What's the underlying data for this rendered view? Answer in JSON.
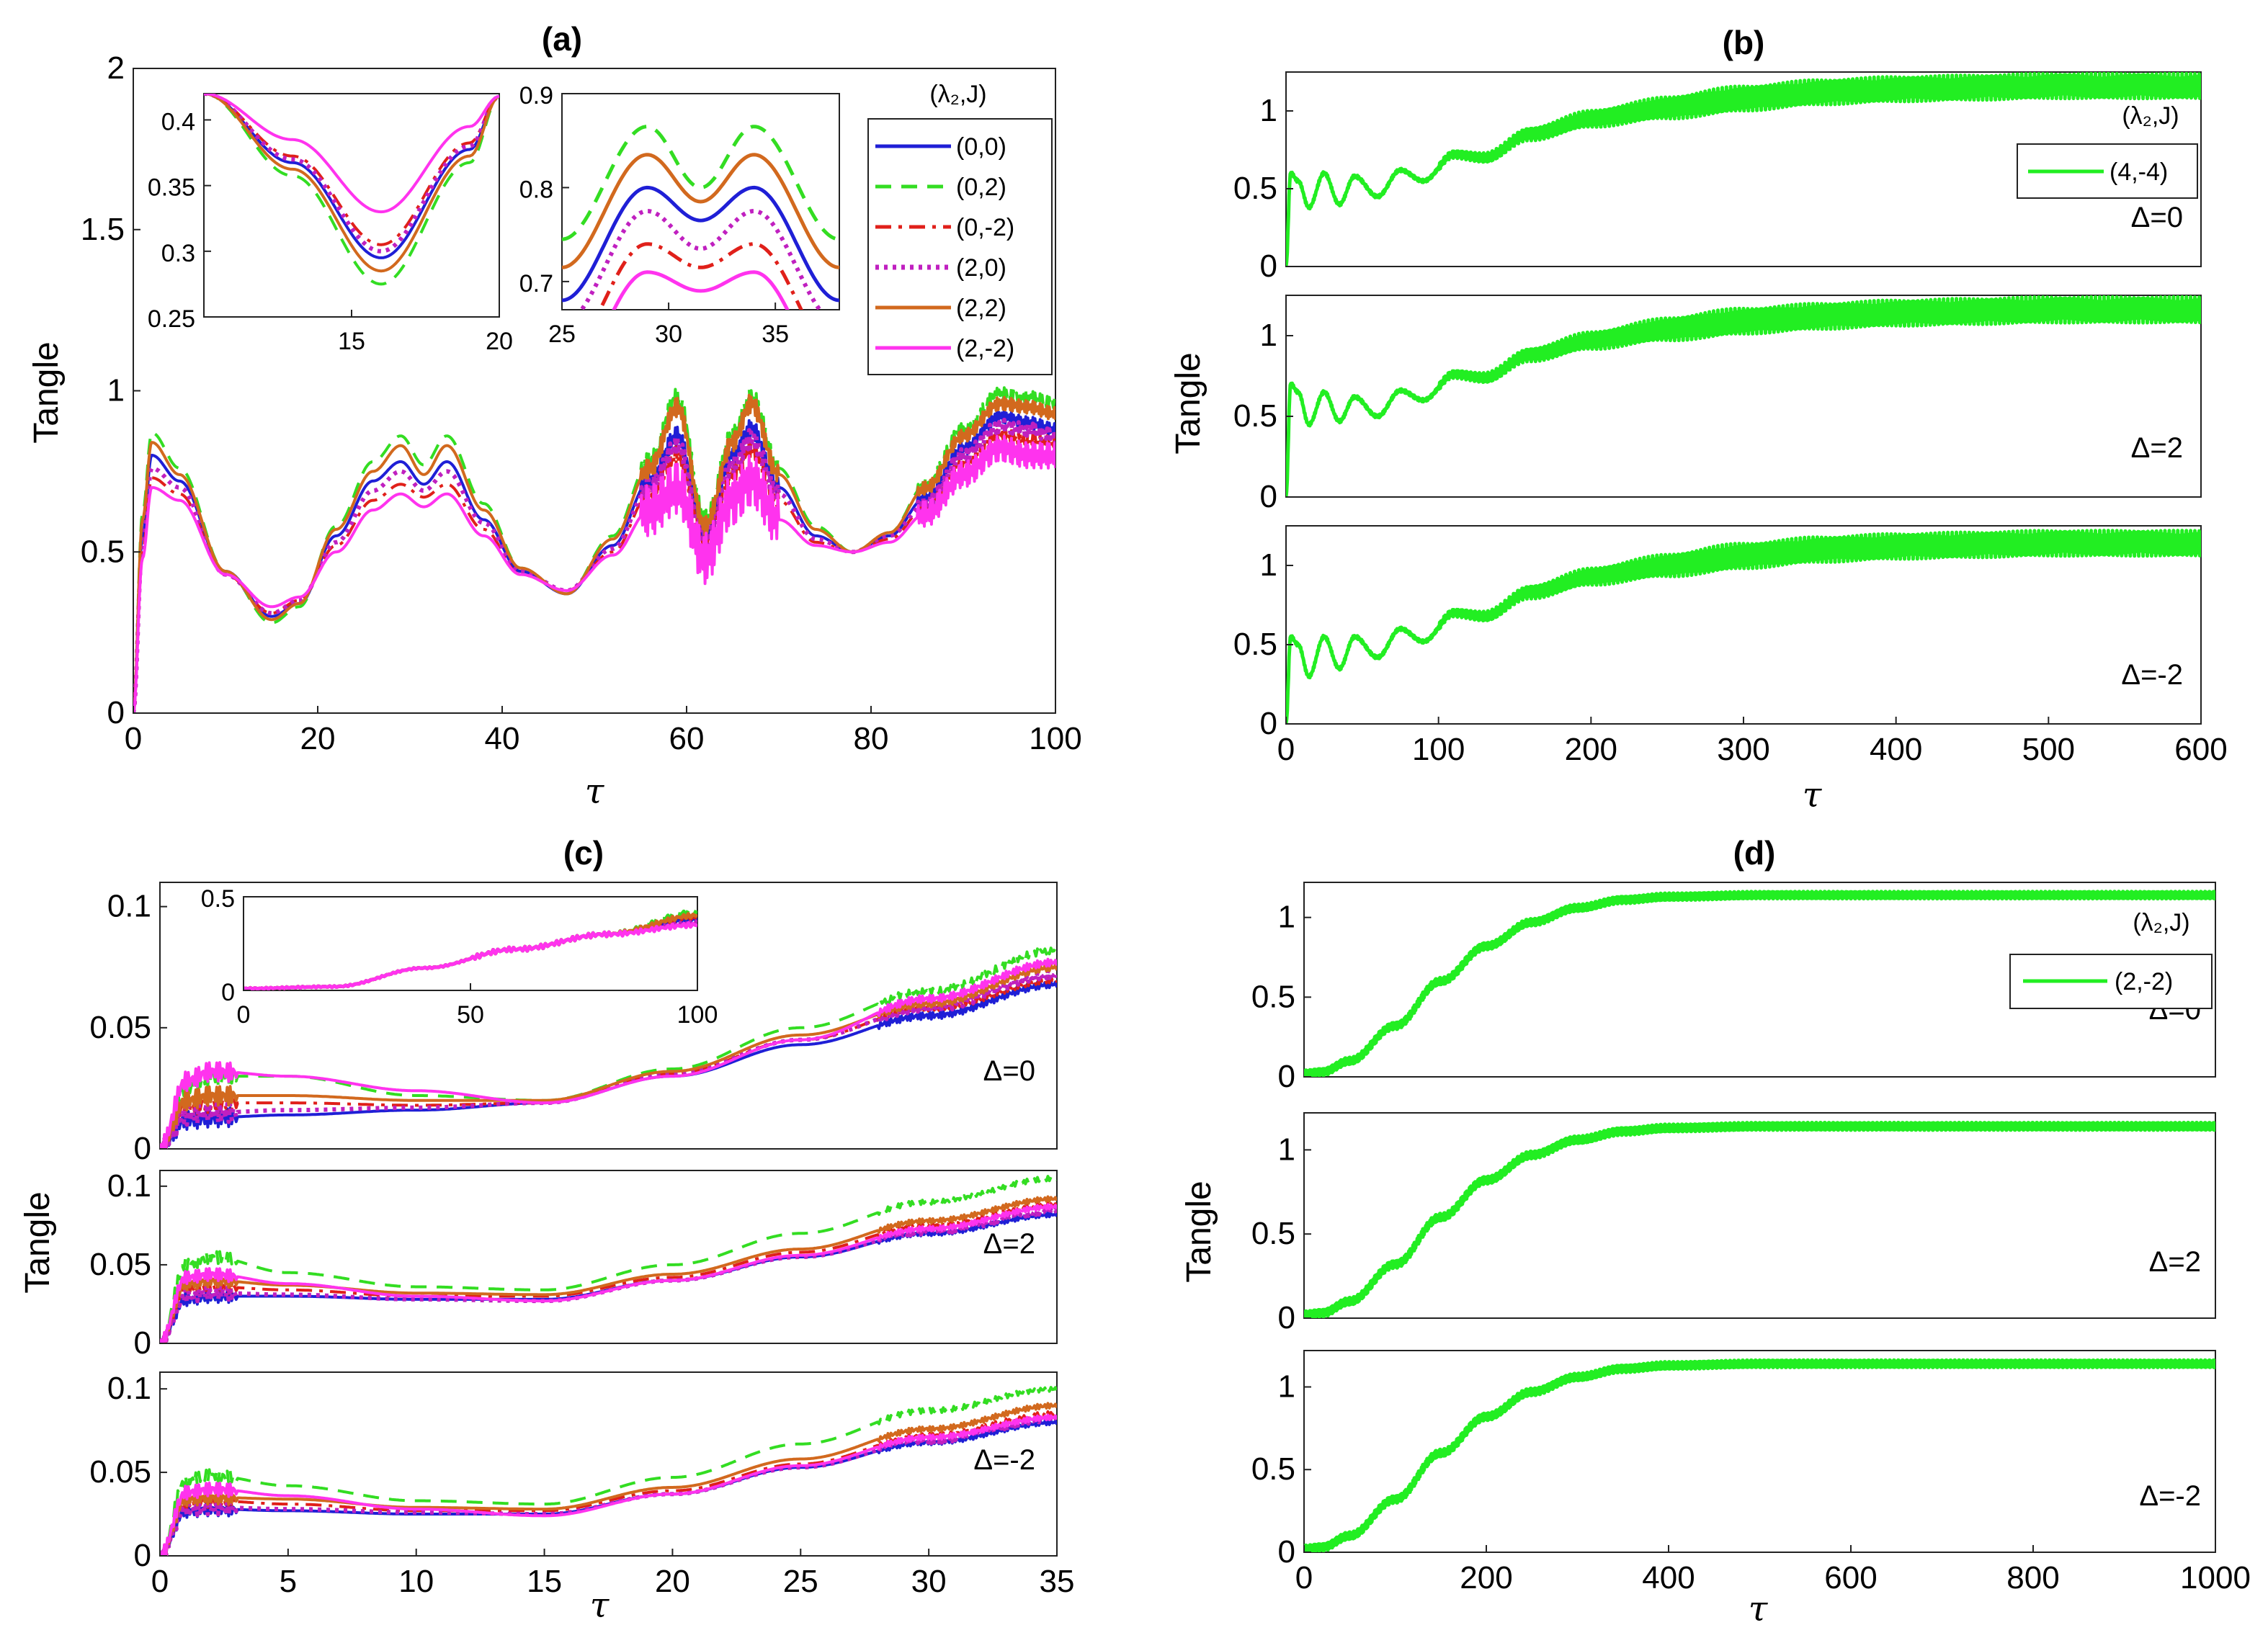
{
  "figure": {
    "colors": {
      "c00": "#1f1fd6",
      "c02": "#33dd22",
      "c0m2": "#e0201a",
      "c20": "#c020c0",
      "c22": "#d2691e",
      "c2m2": "#ff33ee",
      "green": "#22ee22"
    }
  },
  "chart_data": [
    {
      "id": "a",
      "type": "line",
      "title": "(a)",
      "xlabel": "τ",
      "ylabel": "Tangle",
      "xlim": [
        0,
        100
      ],
      "ylim": [
        0,
        2
      ],
      "xticks": [
        "0",
        "20",
        "40",
        "60",
        "80",
        "100"
      ],
      "yticks": [
        "0",
        "0.5",
        "1",
        "1.5",
        "2"
      ],
      "legend_title": "(λ₂,J)",
      "series": [
        {
          "name": "(0,0)",
          "color": "#1f1fd6",
          "style": "solid",
          "x": [
            0,
            1,
            2,
            5,
            10,
            15,
            18,
            22,
            26,
            29,
            31.5,
            34,
            38,
            42,
            47,
            52,
            56,
            59,
            62,
            65,
            67,
            70,
            74,
            78,
            82,
            86,
            90,
            94,
            97,
            100
          ],
          "y": [
            0,
            0.55,
            0.8,
            0.72,
            0.44,
            0.3,
            0.34,
            0.55,
            0.72,
            0.78,
            0.71,
            0.78,
            0.6,
            0.44,
            0.37,
            0.52,
            0.72,
            0.86,
            0.55,
            0.8,
            0.88,
            0.7,
            0.55,
            0.5,
            0.55,
            0.67,
            0.82,
            0.92,
            0.9,
            0.88
          ]
        },
        {
          "name": "(0,2)",
          "color": "#33dd22",
          "style": "dashed",
          "x": [
            0,
            1,
            2,
            5,
            10,
            15,
            18,
            22,
            26,
            29,
            31.5,
            34,
            38,
            42,
            47,
            52,
            56,
            59,
            62,
            65,
            67,
            70,
            74,
            78,
            82,
            86,
            90,
            94,
            97,
            100
          ],
          "y": [
            0,
            0.62,
            0.87,
            0.76,
            0.44,
            0.28,
            0.33,
            0.58,
            0.78,
            0.86,
            0.77,
            0.86,
            0.65,
            0.45,
            0.37,
            0.55,
            0.78,
            0.98,
            0.6,
            0.86,
            0.98,
            0.76,
            0.58,
            0.5,
            0.56,
            0.71,
            0.88,
            0.99,
            0.98,
            0.96
          ]
        },
        {
          "name": "(0,-2)",
          "color": "#e0201a",
          "style": "dashdot",
          "x": [
            0,
            1,
            2,
            5,
            10,
            15,
            18,
            22,
            26,
            29,
            31.5,
            34,
            38,
            42,
            47,
            52,
            56,
            59,
            62,
            65,
            67,
            70,
            74,
            78,
            82,
            86,
            90,
            94,
            97,
            100
          ],
          "y": [
            0,
            0.5,
            0.73,
            0.68,
            0.43,
            0.31,
            0.35,
            0.52,
            0.66,
            0.71,
            0.67,
            0.71,
            0.57,
            0.43,
            0.38,
            0.5,
            0.68,
            0.8,
            0.53,
            0.74,
            0.82,
            0.66,
            0.53,
            0.5,
            0.54,
            0.64,
            0.77,
            0.86,
            0.85,
            0.84
          ]
        },
        {
          "name": "(2,0)",
          "color": "#c020c0",
          "style": "dotted",
          "x": [
            0,
            1,
            2,
            5,
            10,
            15,
            18,
            22,
            26,
            29,
            31.5,
            34,
            38,
            42,
            47,
            52,
            56,
            59,
            62,
            65,
            67,
            70,
            74,
            78,
            82,
            86,
            90,
            94,
            97,
            100
          ],
          "y": [
            0,
            0.52,
            0.76,
            0.7,
            0.43,
            0.31,
            0.35,
            0.53,
            0.69,
            0.75,
            0.69,
            0.75,
            0.59,
            0.44,
            0.38,
            0.51,
            0.7,
            0.83,
            0.54,
            0.77,
            0.85,
            0.68,
            0.54,
            0.5,
            0.55,
            0.65,
            0.8,
            0.89,
            0.88,
            0.86
          ]
        },
        {
          "name": "(2,2)",
          "color": "#d2691e",
          "style": "solid",
          "x": [
            0,
            1,
            2,
            5,
            10,
            15,
            18,
            22,
            26,
            29,
            31.5,
            34,
            38,
            42,
            47,
            52,
            56,
            59,
            62,
            65,
            67,
            70,
            74,
            78,
            82,
            86,
            90,
            94,
            97,
            100
          ],
          "y": [
            0,
            0.6,
            0.84,
            0.74,
            0.44,
            0.29,
            0.34,
            0.57,
            0.75,
            0.83,
            0.74,
            0.83,
            0.63,
            0.45,
            0.37,
            0.54,
            0.76,
            0.95,
            0.58,
            0.84,
            0.96,
            0.74,
            0.57,
            0.5,
            0.56,
            0.7,
            0.86,
            0.96,
            0.95,
            0.93
          ]
        },
        {
          "name": "(2,-2)",
          "color": "#ff33ee",
          "style": "solid",
          "x": [
            0,
            1,
            2,
            5,
            10,
            15,
            18,
            22,
            26,
            29,
            31.5,
            34,
            38,
            42,
            47,
            52,
            56,
            59,
            62,
            65,
            67,
            70,
            74,
            78,
            82,
            86,
            90,
            94,
            97,
            100
          ],
          "y": [
            0,
            0.48,
            0.7,
            0.66,
            0.43,
            0.33,
            0.36,
            0.5,
            0.63,
            0.68,
            0.64,
            0.68,
            0.55,
            0.43,
            0.38,
            0.49,
            0.63,
            0.7,
            0.48,
            0.66,
            0.72,
            0.6,
            0.52,
            0.5,
            0.53,
            0.62,
            0.74,
            0.82,
            0.8,
            0.8
          ]
        }
      ],
      "insets": [
        {
          "xlim": [
            10,
            20
          ],
          "ylim": [
            0.25,
            0.42
          ],
          "xticks": [
            "15",
            "20"
          ],
          "yticks": [
            "0.25",
            "0.3",
            "0.35",
            "0.4"
          ],
          "series_min_y": [
            0.295,
            0.275,
            0.305,
            0.3,
            0.285,
            0.33
          ],
          "min_x": 16
        },
        {
          "xlim": [
            25,
            38
          ],
          "ylim": [
            0.67,
            0.9
          ],
          "xticks": [
            "25",
            "30",
            "35"
          ],
          "yticks": [
            "0.7",
            "0.8",
            "0.9"
          ],
          "series_peak_y": [
            0.8,
            0.865,
            0.74,
            0.775,
            0.835,
            0.71
          ],
          "series_dip_y": [
            0.765,
            0.8,
            0.715,
            0.735,
            0.785,
            0.69
          ]
        }
      ]
    },
    {
      "id": "b",
      "type": "line",
      "title": "(b)",
      "xlabel": "τ",
      "ylabel": "Tangle",
      "xlim": [
        0,
        600
      ],
      "ylim": [
        0,
        1.25
      ],
      "xticks": [
        "0",
        "100",
        "200",
        "300",
        "400",
        "500",
        "600"
      ],
      "yticks": [
        "0",
        "0.5",
        "1"
      ],
      "legend_title": "(λ₂,J)",
      "legend_entry": "(4,-4)",
      "subplots": [
        {
          "label": "Δ=0",
          "x": [
            0,
            3,
            8,
            15,
            25,
            35,
            45,
            60,
            75,
            90,
            110,
            130,
            160,
            200,
            250,
            300,
            350,
            400,
            450,
            500,
            550,
            600
          ],
          "y": [
            0,
            0.6,
            0.55,
            0.38,
            0.6,
            0.4,
            0.58,
            0.45,
            0.62,
            0.55,
            0.72,
            0.7,
            0.85,
            0.95,
            1.02,
            1.08,
            1.12,
            1.14,
            1.15,
            1.16,
            1.16,
            1.16
          ]
        },
        {
          "label": "Δ=2",
          "x": [
            0,
            3,
            8,
            15,
            25,
            35,
            45,
            60,
            75,
            90,
            110,
            130,
            160,
            200,
            250,
            300,
            350,
            400,
            450,
            500,
            550,
            600
          ],
          "y": [
            0,
            0.7,
            0.65,
            0.45,
            0.65,
            0.47,
            0.62,
            0.5,
            0.66,
            0.6,
            0.76,
            0.74,
            0.88,
            0.97,
            1.04,
            1.09,
            1.12,
            1.14,
            1.15,
            1.16,
            1.16,
            1.16
          ]
        },
        {
          "label": "Δ=-2",
          "x": [
            0,
            3,
            8,
            15,
            25,
            35,
            45,
            60,
            75,
            90,
            110,
            130,
            160,
            200,
            250,
            300,
            350,
            400,
            450,
            500,
            550,
            600
          ],
          "y": [
            0,
            0.55,
            0.5,
            0.3,
            0.55,
            0.35,
            0.55,
            0.42,
            0.6,
            0.52,
            0.7,
            0.68,
            0.83,
            0.93,
            1.0,
            1.06,
            1.1,
            1.12,
            1.13,
            1.14,
            1.14,
            1.14
          ]
        }
      ]
    },
    {
      "id": "c",
      "type": "line",
      "title": "(c)",
      "xlabel": "τ",
      "ylabel": "Tangle",
      "xlim": [
        0,
        35
      ],
      "ylim": [
        0,
        0.11
      ],
      "xticks": [
        "0",
        "5",
        "10",
        "15",
        "20",
        "25",
        "30",
        "35"
      ],
      "yticks": [
        "0",
        "0.05",
        "0.1"
      ],
      "inset": {
        "xlim": [
          0,
          100
        ],
        "ylim": [
          0,
          0.5
        ],
        "xticks": [
          "0",
          "50",
          "100"
        ],
        "yticks": [
          "0",
          "0.5"
        ]
      },
      "subplots": [
        {
          "label": "Δ=0",
          "x": [
            0,
            1,
            2,
            5,
            10,
            15,
            20,
            25,
            30,
            35
          ],
          "series": [
            [
              0,
              0.012,
              0.013,
              0.014,
              0.016,
              0.019,
              0.03,
              0.043,
              0.055,
              0.068
            ],
            [
              0,
              0.025,
              0.03,
              0.03,
              0.022,
              0.02,
              0.033,
              0.05,
              0.065,
              0.082
            ],
            [
              0,
              0.018,
              0.019,
              0.019,
              0.018,
              0.019,
              0.031,
              0.045,
              0.058,
              0.07
            ],
            [
              0,
              0.014,
              0.015,
              0.016,
              0.017,
              0.019,
              0.031,
              0.045,
              0.058,
              0.072
            ],
            [
              0,
              0.02,
              0.022,
              0.022,
              0.02,
              0.02,
              0.032,
              0.047,
              0.06,
              0.075
            ],
            [
              0,
              0.028,
              0.032,
              0.03,
              0.024,
              0.019,
              0.03,
              0.045,
              0.062,
              0.077
            ]
          ]
        },
        {
          "label": "Δ=2",
          "x": [
            0,
            1,
            2,
            5,
            10,
            15,
            20,
            25,
            30,
            35
          ],
          "series": [
            [
              0,
              0.028,
              0.03,
              0.03,
              0.028,
              0.028,
              0.04,
              0.055,
              0.07,
              0.082
            ],
            [
              0,
              0.05,
              0.055,
              0.045,
              0.036,
              0.034,
              0.05,
              0.07,
              0.09,
              0.105
            ],
            [
              0,
              0.035,
              0.036,
              0.034,
              0.03,
              0.03,
              0.042,
              0.058,
              0.075,
              0.088
            ],
            [
              0,
              0.03,
              0.032,
              0.031,
              0.028,
              0.027,
              0.04,
              0.055,
              0.071,
              0.084
            ],
            [
              0,
              0.038,
              0.04,
              0.037,
              0.032,
              0.031,
              0.044,
              0.06,
              0.078,
              0.092
            ],
            [
              0,
              0.042,
              0.044,
              0.038,
              0.03,
              0.027,
              0.04,
              0.056,
              0.073,
              0.087
            ]
          ]
        },
        {
          "label": "Δ=-2",
          "x": [
            0,
            1,
            2,
            5,
            10,
            15,
            20,
            25,
            30,
            35
          ],
          "series": [
            [
              0,
              0.027,
              0.028,
              0.027,
              0.025,
              0.025,
              0.037,
              0.053,
              0.068,
              0.08
            ],
            [
              0,
              0.045,
              0.048,
              0.042,
              0.033,
              0.031,
              0.047,
              0.067,
              0.087,
              0.1
            ],
            [
              0,
              0.032,
              0.033,
              0.031,
              0.027,
              0.027,
              0.039,
              0.055,
              0.072,
              0.085
            ],
            [
              0,
              0.028,
              0.029,
              0.028,
              0.026,
              0.025,
              0.037,
              0.053,
              0.069,
              0.082
            ],
            [
              0,
              0.034,
              0.035,
              0.034,
              0.029,
              0.028,
              0.041,
              0.058,
              0.076,
              0.09
            ],
            [
              0,
              0.038,
              0.04,
              0.036,
              0.028,
              0.024,
              0.037,
              0.054,
              0.071,
              0.083
            ]
          ]
        }
      ]
    },
    {
      "id": "d",
      "type": "line",
      "title": "(d)",
      "xlabel": "τ",
      "ylabel": "Tangle",
      "xlim": [
        0,
        1000
      ],
      "ylim": [
        0,
        1.22
      ],
      "xticks": [
        "0",
        "200",
        "400",
        "600",
        "800",
        "1000"
      ],
      "yticks": [
        "0",
        "0.5",
        "1"
      ],
      "legend_title": "(λ₂,J)",
      "legend_entry": "(2,-2)",
      "subplots": [
        {
          "label": "Δ=0",
          "x": [
            0,
            20,
            50,
            100,
            150,
            200,
            250,
            300,
            350,
            400,
            500,
            600,
            800,
            1000
          ],
          "y": [
            0.02,
            0.03,
            0.1,
            0.32,
            0.6,
            0.82,
            0.97,
            1.06,
            1.11,
            1.13,
            1.14,
            1.14,
            1.14,
            1.14
          ]
        },
        {
          "label": "Δ=2",
          "x": [
            0,
            20,
            50,
            100,
            150,
            200,
            250,
            300,
            350,
            400,
            500,
            600,
            800,
            1000
          ],
          "y": [
            0.02,
            0.03,
            0.1,
            0.32,
            0.6,
            0.82,
            0.97,
            1.06,
            1.11,
            1.13,
            1.14,
            1.14,
            1.14,
            1.14
          ]
        },
        {
          "label": "Δ=-2",
          "x": [
            0,
            20,
            50,
            100,
            150,
            200,
            250,
            300,
            350,
            400,
            500,
            600,
            800,
            1000
          ],
          "y": [
            0.02,
            0.03,
            0.1,
            0.32,
            0.6,
            0.82,
            0.97,
            1.06,
            1.11,
            1.13,
            1.14,
            1.14,
            1.14,
            1.14
          ]
        }
      ]
    }
  ]
}
